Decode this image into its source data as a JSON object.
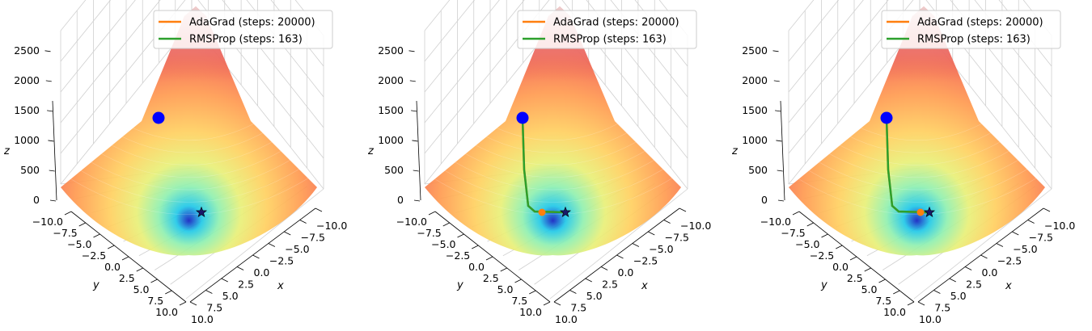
{
  "chart_data": [
    {
      "type": "surface3d",
      "legend": [
        {
          "label": "AdaGrad (steps: 20000)",
          "color": "#ff7f0e"
        },
        {
          "label": "RMSProp (steps: 163)",
          "color": "#2ca02c"
        }
      ],
      "xlabel": "x",
      "ylabel": "y",
      "zlabel": "z",
      "x_ticks": [
        "10.0",
        "7.5",
        "5.0",
        "2.5",
        "0.0",
        "−2.5",
        "−5.0",
        "−7.5",
        "−10.0"
      ],
      "y_ticks": [
        "−10.0",
        "−7.5",
        "−5.0",
        "−2.5",
        "0.0",
        "2.5",
        "5.0",
        "7.5",
        "10.0"
      ],
      "z_ticks": [
        "0",
        "500",
        "1000",
        "1500",
        "2000",
        "2500"
      ],
      "xlim": [
        -10,
        10
      ],
      "ylim": [
        -10,
        10
      ],
      "zlim": [
        0,
        2700
      ],
      "start_point": {
        "x": -10,
        "y": 0,
        "z": 2300,
        "color": "#0000ff"
      },
      "minimum": {
        "x": 0,
        "y": 0,
        "z": 0,
        "marker": "star"
      },
      "adagrad_end": null,
      "paths": []
    },
    {
      "type": "surface3d",
      "legend": [
        {
          "label": "AdaGrad (steps: 20000)",
          "color": "#ff7f0e"
        },
        {
          "label": "RMSProp (steps: 163)",
          "color": "#2ca02c"
        }
      ],
      "xlabel": "x",
      "ylabel": "y",
      "zlabel": "z",
      "x_ticks": [
        "10.0",
        "7.5",
        "5.0",
        "2.5",
        "0.0",
        "−2.5",
        "−5.0",
        "−7.5",
        "−10.0"
      ],
      "y_ticks": [
        "−10.0",
        "−7.5",
        "−5.0",
        "−2.5",
        "0.0",
        "2.5",
        "5.0",
        "7.5",
        "10.0"
      ],
      "z_ticks": [
        "0",
        "500",
        "1000",
        "1500",
        "2000",
        "2500"
      ],
      "xlim": [
        -10,
        10
      ],
      "ylim": [
        -10,
        10
      ],
      "zlim": [
        0,
        2700
      ],
      "start_point": {
        "x": -10,
        "y": 0,
        "z": 2300,
        "color": "#0000ff"
      },
      "minimum": {
        "x": 0,
        "y": 0,
        "z": 0,
        "marker": "star"
      },
      "adagrad_end": {
        "x": -2.5,
        "y": 0,
        "z": 0
      },
      "paths": [
        "adagrad",
        "rmsprop"
      ]
    },
    {
      "type": "surface3d",
      "legend": [
        {
          "label": "AdaGrad (steps: 20000)",
          "color": "#ff7f0e"
        },
        {
          "label": "RMSProp (steps: 163)",
          "color": "#2ca02c"
        }
      ],
      "xlabel": "x",
      "ylabel": "y",
      "zlabel": "z",
      "x_ticks": [
        "10.0",
        "7.5",
        "5.0",
        "2.5",
        "0.0",
        "−2.5",
        "−5.0",
        "−7.5",
        "−10.0"
      ],
      "y_ticks": [
        "−10.0",
        "−7.5",
        "−5.0",
        "−2.5",
        "0.0",
        "2.5",
        "5.0",
        "7.5",
        "10.0"
      ],
      "z_ticks": [
        "0",
        "500",
        "1000",
        "1500",
        "2000",
        "2500"
      ],
      "xlim": [
        -10,
        10
      ],
      "ylim": [
        -10,
        10
      ],
      "zlim": [
        0,
        2700
      ],
      "start_point": {
        "x": -10,
        "y": 0,
        "z": 2300,
        "color": "#0000ff"
      },
      "minimum": {
        "x": 0,
        "y": 0,
        "z": 0,
        "marker": "star"
      },
      "adagrad_end": {
        "x": -1,
        "y": 0,
        "z": 0
      },
      "paths": [
        "adagrad",
        "rmsprop"
      ]
    }
  ]
}
